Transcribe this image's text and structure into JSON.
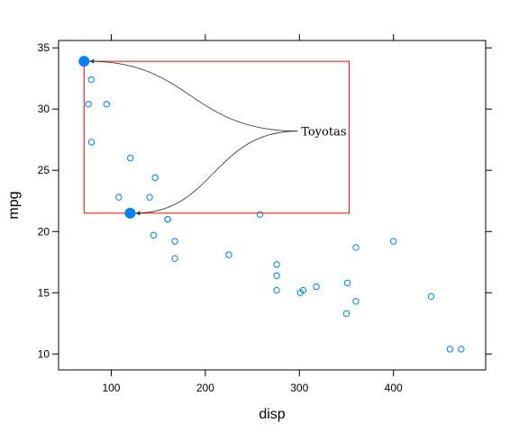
{
  "chart_data": {
    "type": "scatter",
    "title": "",
    "xlabel": "disp",
    "ylabel": "mpg",
    "xlim": [
      44.0,
      498.0
    ],
    "ylim": [
      8.7,
      35.6
    ],
    "xticks": [
      100,
      200,
      300,
      400
    ],
    "yticks": [
      10,
      15,
      20,
      25,
      30,
      35
    ],
    "grid": false,
    "point_color": "#0080ff",
    "highlight_color": "#0080ff",
    "box_color": "#ff0000",
    "points": [
      {
        "x": 160,
        "y": 21.0
      },
      {
        "x": 160,
        "y": 21.0
      },
      {
        "x": 108,
        "y": 22.8
      },
      {
        "x": 258,
        "y": 21.4
      },
      {
        "x": 360,
        "y": 18.7
      },
      {
        "x": 225,
        "y": 18.1
      },
      {
        "x": 360,
        "y": 14.3
      },
      {
        "x": 146.7,
        "y": 24.4
      },
      {
        "x": 140.8,
        "y": 22.8
      },
      {
        "x": 167.6,
        "y": 19.2
      },
      {
        "x": 167.6,
        "y": 17.8
      },
      {
        "x": 275.8,
        "y": 16.4
      },
      {
        "x": 275.8,
        "y": 17.3
      },
      {
        "x": 275.8,
        "y": 15.2
      },
      {
        "x": 472,
        "y": 10.4
      },
      {
        "x": 460,
        "y": 10.4
      },
      {
        "x": 440,
        "y": 14.7
      },
      {
        "x": 78.7,
        "y": 32.4
      },
      {
        "x": 75.7,
        "y": 30.4
      },
      {
        "x": 71.1,
        "y": 33.9
      },
      {
        "x": 120.1,
        "y": 21.5
      },
      {
        "x": 318,
        "y": 15.5
      },
      {
        "x": 304,
        "y": 15.2
      },
      {
        "x": 350,
        "y": 13.3
      },
      {
        "x": 400,
        "y": 19.2
      },
      {
        "x": 79,
        "y": 27.3
      },
      {
        "x": 120.3,
        "y": 26.0
      },
      {
        "x": 95.1,
        "y": 30.4
      },
      {
        "x": 351,
        "y": 15.8
      },
      {
        "x": 145,
        "y": 19.7
      },
      {
        "x": 301,
        "y": 15.0
      },
      {
        "x": 121,
        "y": 21.4
      }
    ],
    "highlighted": [
      {
        "x": 71.1,
        "y": 33.9
      },
      {
        "x": 120.1,
        "y": 21.5
      }
    ],
    "annotation": {
      "text": "Toyotas",
      "anchor": {
        "x": 298,
        "y": 28.2
      },
      "box": {
        "x0": 71.1,
        "x1": 353,
        "y0": 21.5,
        "y1": 33.9
      }
    }
  }
}
